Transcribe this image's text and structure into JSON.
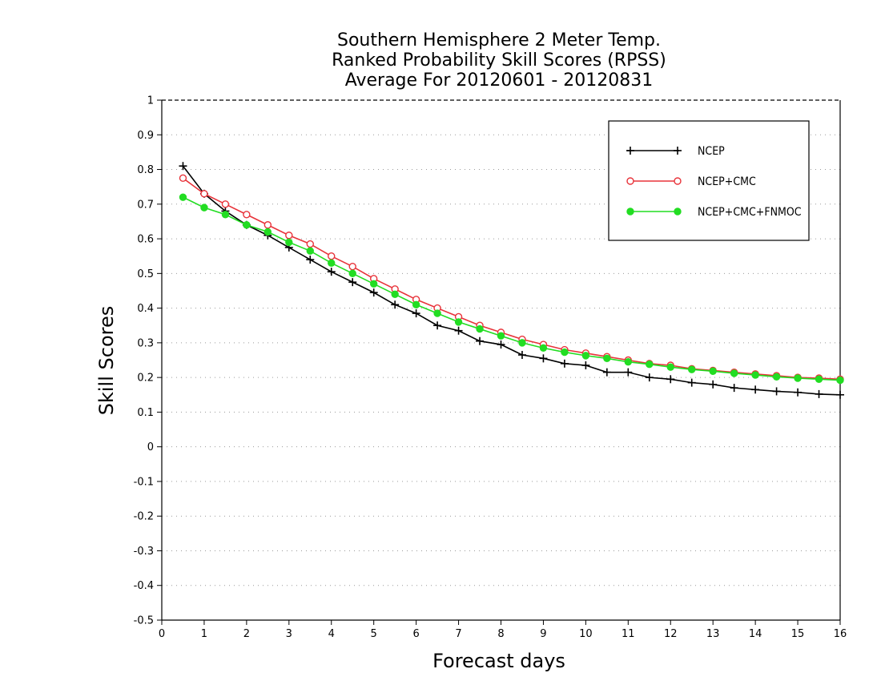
{
  "chart_data": {
    "type": "line",
    "title": [
      "Southern Hemisphere 2 Meter Temp.",
      "Ranked Probability Skill Scores (RPSS)",
      "Average For 20120601 - 20120831"
    ],
    "xlabel": "Forecast days",
    "ylabel": "Skill Scores",
    "xlim": [
      0,
      16
    ],
    "ylim": [
      -0.5,
      1
    ],
    "xticks": [
      "0",
      "1",
      "2",
      "3",
      "4",
      "5",
      "6",
      "7",
      "8",
      "9",
      "10",
      "11",
      "12",
      "13",
      "14",
      "15",
      "16"
    ],
    "yticks": [
      "1",
      "0.9",
      "0.8",
      "0.7",
      "0.6",
      "0.5",
      "0.4",
      "0.3",
      "0.2",
      "0.1",
      "0",
      "-0.1",
      "-0.2",
      "-0.3",
      "-0.4",
      "-0.5"
    ],
    "grid": "horizontal-dotted",
    "legend_position": "top-right",
    "x": [
      0.5,
      1,
      1.5,
      2,
      2.5,
      3,
      3.5,
      4,
      4.5,
      5,
      5.5,
      6,
      6.5,
      7,
      7.5,
      8,
      8.5,
      9,
      9.5,
      10,
      10.5,
      11,
      11.5,
      12,
      12.5,
      13,
      13.5,
      14,
      14.5,
      15,
      15.5,
      16
    ],
    "series": [
      {
        "name": "NCEP",
        "color": "#000000",
        "marker": "plus",
        "values": [
          0.81,
          0.73,
          0.68,
          0.64,
          0.61,
          0.575,
          0.54,
          0.505,
          0.475,
          0.445,
          0.41,
          0.385,
          0.35,
          0.335,
          0.305,
          0.295,
          0.265,
          0.255,
          0.24,
          0.235,
          0.215,
          0.215,
          0.2,
          0.195,
          0.185,
          0.18,
          0.17,
          0.165,
          0.16,
          0.157,
          0.152,
          0.15
        ]
      },
      {
        "name": "NCEP+CMC",
        "color": "#e8333a",
        "marker": "open-circle",
        "values": [
          0.775,
          0.73,
          0.7,
          0.67,
          0.64,
          0.61,
          0.585,
          0.55,
          0.52,
          0.485,
          0.455,
          0.425,
          0.4,
          0.375,
          0.35,
          0.33,
          0.31,
          0.295,
          0.28,
          0.27,
          0.26,
          0.25,
          0.24,
          0.235,
          0.225,
          0.22,
          0.215,
          0.21,
          0.205,
          0.2,
          0.198,
          0.195
        ]
      },
      {
        "name": "NCEP+CMC+FNMOC",
        "color": "#22dd22",
        "marker": "filled-circle",
        "values": [
          0.72,
          0.69,
          0.67,
          0.64,
          0.62,
          0.59,
          0.565,
          0.53,
          0.5,
          0.47,
          0.44,
          0.41,
          0.385,
          0.36,
          0.34,
          0.32,
          0.3,
          0.285,
          0.273,
          0.263,
          0.255,
          0.245,
          0.238,
          0.23,
          0.223,
          0.218,
          0.212,
          0.207,
          0.202,
          0.198,
          0.195,
          0.192
        ]
      }
    ]
  }
}
